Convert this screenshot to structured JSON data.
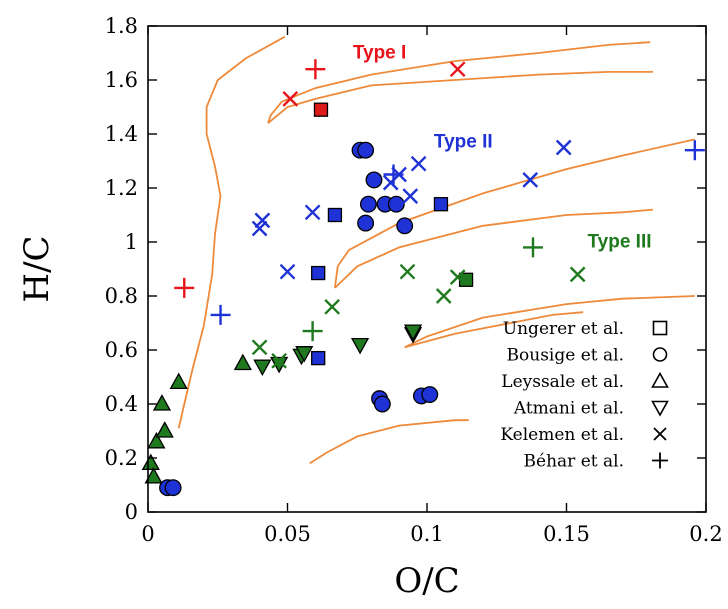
{
  "colors": {
    "red": "#e8141b",
    "blue": "#1f32d6",
    "green": "#1f7a1f",
    "curve": "#ee8a3a",
    "ungerer_red_fill": "#dd1a1a"
  },
  "chart_data": {
    "type": "scatter",
    "xlabel": "O/C",
    "ylabel": "H/C",
    "xlim": [
      0,
      0.2
    ],
    "ylim": [
      0,
      1.8
    ],
    "xticks": [
      0,
      0.05,
      0.1,
      0.15,
      0.2
    ],
    "xtick_labels": [
      "0",
      "0.05",
      "0.1",
      "0.15",
      "0.2"
    ],
    "yticks": [
      0,
      0.2,
      0.4,
      0.6,
      0.8,
      1.0,
      1.2,
      1.4,
      1.6,
      1.8
    ],
    "ytick_labels": [
      "0",
      "0.2",
      "0.4",
      "0.6",
      "0.8",
      "1",
      "1.2",
      "1.4",
      "1.6",
      "1.8"
    ],
    "grid": false,
    "legend_position": "bottom-right",
    "legend": [
      {
        "label": "Ungerer et al.",
        "marker": "square"
      },
      {
        "label": "Bousige et al.",
        "marker": "circle"
      },
      {
        "label": "Leyssale et al.",
        "marker": "triangle-up"
      },
      {
        "label": "Atmani et al.",
        "marker": "triangle-down"
      },
      {
        "label": "Kelemen et al.",
        "marker": "x"
      },
      {
        "label": "Béhar et al.",
        "marker": "plus"
      }
    ],
    "region_labels": [
      {
        "text": "Type I",
        "color": "red",
        "x": 0.083,
        "y": 1.68
      },
      {
        "text": "Type II",
        "color": "blue",
        "x": 0.113,
        "y": 1.35
      },
      {
        "text": "Type III",
        "color": "green",
        "x": 0.169,
        "y": 0.98
      }
    ],
    "curves": [
      [
        [
          0.049,
          1.76
        ],
        [
          0.035,
          1.68
        ],
        [
          0.025,
          1.6
        ],
        [
          0.021,
          1.5
        ],
        [
          0.021,
          1.4
        ],
        [
          0.024,
          1.28
        ],
        [
          0.026,
          1.17
        ],
        [
          0.024,
          1.03
        ],
        [
          0.023,
          0.88
        ],
        [
          0.02,
          0.69
        ],
        [
          0.016,
          0.53
        ],
        [
          0.013,
          0.4
        ],
        [
          0.011,
          0.31
        ]
      ],
      [
        [
          0.043,
          1.44
        ],
        [
          0.044,
          1.47
        ],
        [
          0.048,
          1.52
        ],
        [
          0.06,
          1.57
        ],
        [
          0.08,
          1.62
        ],
        [
          0.11,
          1.67
        ],
        [
          0.14,
          1.7
        ],
        [
          0.165,
          1.73
        ],
        [
          0.18,
          1.74
        ]
      ],
      [
        [
          0.043,
          1.44
        ],
        [
          0.05,
          1.5
        ],
        [
          0.06,
          1.53
        ],
        [
          0.08,
          1.58
        ],
        [
          0.11,
          1.6
        ],
        [
          0.14,
          1.62
        ],
        [
          0.165,
          1.63
        ],
        [
          0.181,
          1.63
        ]
      ],
      [
        [
          0.067,
          0.83
        ],
        [
          0.068,
          0.91
        ],
        [
          0.072,
          0.97
        ],
        [
          0.09,
          1.07
        ],
        [
          0.12,
          1.18
        ],
        [
          0.15,
          1.27
        ],
        [
          0.17,
          1.32
        ],
        [
          0.196,
          1.38
        ]
      ],
      [
        [
          0.067,
          0.83
        ],
        [
          0.075,
          0.91
        ],
        [
          0.09,
          0.98
        ],
        [
          0.12,
          1.06
        ],
        [
          0.15,
          1.1
        ],
        [
          0.17,
          1.11
        ],
        [
          0.181,
          1.12
        ]
      ],
      [
        [
          0.092,
          0.61
        ],
        [
          0.1,
          0.65
        ],
        [
          0.12,
          0.72
        ],
        [
          0.15,
          0.77
        ],
        [
          0.17,
          0.79
        ],
        [
          0.196,
          0.8
        ]
      ],
      [
        [
          0.092,
          0.61
        ],
        [
          0.11,
          0.66
        ],
        [
          0.13,
          0.7
        ],
        [
          0.145,
          0.73
        ],
        [
          0.156,
          0.74
        ]
      ],
      [
        [
          0.058,
          0.18
        ],
        [
          0.064,
          0.22
        ],
        [
          0.075,
          0.28
        ],
        [
          0.09,
          0.32
        ],
        [
          0.11,
          0.34
        ],
        [
          0.115,
          0.34
        ]
      ]
    ],
    "series": [
      {
        "name": "Ungerer et al.",
        "marker": "square",
        "color": "blue",
        "points": [
          [
            0.061,
            0.885
          ],
          [
            0.067,
            1.1
          ],
          [
            0.061,
            0.57
          ],
          [
            0.105,
            1.14
          ]
        ]
      },
      {
        "name": "Ungerer et al.",
        "marker": "square",
        "color": "red",
        "points": [
          [
            0.062,
            1.49
          ]
        ]
      },
      {
        "name": "Ungerer et al.",
        "marker": "square",
        "color": "green",
        "points": [
          [
            0.114,
            0.86
          ]
        ]
      },
      {
        "name": "Bousige et al.",
        "marker": "circle",
        "color": "blue",
        "points": [
          [
            0.076,
            1.34
          ],
          [
            0.078,
            1.34
          ],
          [
            0.079,
            1.14
          ],
          [
            0.081,
            1.23
          ],
          [
            0.085,
            1.14
          ],
          [
            0.089,
            1.14
          ],
          [
            0.078,
            1.07
          ],
          [
            0.092,
            1.06
          ],
          [
            0.083,
            0.42
          ],
          [
            0.084,
            0.4
          ],
          [
            0.098,
            0.43
          ],
          [
            0.101,
            0.435
          ],
          [
            0.007,
            0.09
          ],
          [
            0.009,
            0.09
          ]
        ]
      },
      {
        "name": "Leyssale et al.",
        "marker": "triangle-up",
        "color": "green",
        "points": [
          [
            0.001,
            0.18
          ],
          [
            0.002,
            0.13
          ],
          [
            0.003,
            0.26
          ],
          [
            0.005,
            0.4
          ],
          [
            0.006,
            0.3
          ],
          [
            0.011,
            0.48
          ],
          [
            0.034,
            0.55
          ]
        ]
      },
      {
        "name": "Atmani et al.",
        "marker": "triangle-down",
        "color": "green",
        "points": [
          [
            0.041,
            0.54
          ],
          [
            0.047,
            0.55
          ],
          [
            0.055,
            0.58
          ],
          [
            0.056,
            0.59
          ],
          [
            0.076,
            0.62
          ],
          [
            0.095,
            0.66
          ],
          [
            0.095,
            0.67
          ]
        ]
      },
      {
        "name": "Kelemen et al.",
        "marker": "x",
        "color": "red",
        "points": [
          [
            0.051,
            1.53
          ],
          [
            0.111,
            1.64
          ]
        ]
      },
      {
        "name": "Kelemen et al.",
        "marker": "x",
        "color": "blue",
        "points": [
          [
            0.04,
            1.05
          ],
          [
            0.041,
            1.08
          ],
          [
            0.05,
            0.89
          ],
          [
            0.059,
            1.11
          ],
          [
            0.087,
            1.22
          ],
          [
            0.09,
            1.25
          ],
          [
            0.094,
            1.17
          ],
          [
            0.097,
            1.29
          ],
          [
            0.137,
            1.23
          ],
          [
            0.149,
            1.35
          ]
        ]
      },
      {
        "name": "Kelemen et al.",
        "marker": "x",
        "color": "green",
        "points": [
          [
            0.04,
            0.61
          ],
          [
            0.047,
            0.56
          ],
          [
            0.066,
            0.76
          ],
          [
            0.093,
            0.89
          ],
          [
            0.106,
            0.8
          ],
          [
            0.111,
            0.87
          ],
          [
            0.154,
            0.88
          ]
        ]
      },
      {
        "name": "Béhar et al.",
        "marker": "plus",
        "color": "red",
        "points": [
          [
            0.013,
            0.83
          ],
          [
            0.06,
            1.64
          ]
        ]
      },
      {
        "name": "Béhar et al.",
        "marker": "plus",
        "color": "blue",
        "points": [
          [
            0.026,
            0.73
          ],
          [
            0.088,
            1.25
          ],
          [
            0.196,
            1.34
          ]
        ]
      },
      {
        "name": "Béhar et al.",
        "marker": "plus",
        "color": "green",
        "points": [
          [
            0.059,
            0.67
          ],
          [
            0.138,
            0.98
          ]
        ]
      }
    ]
  }
}
